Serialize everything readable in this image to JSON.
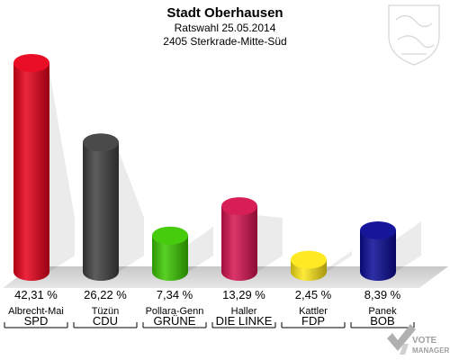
{
  "header": {
    "title": "Stadt Oberhausen",
    "subtitle": "Ratswahl 25.05.2014",
    "district": "2405 Sterkrade-Mitte-Süd"
  },
  "branding": {
    "crest_icon": "coat-of-arms-icon",
    "logo_icon": "vote-check-icon",
    "logo_line1": "VOTE",
    "logo_line2": "MANAGER"
  },
  "chart_data": {
    "type": "bar",
    "title": "Stadt Oberhausen",
    "subtitle": "Ratswahl 25.05.2014",
    "categories": [
      "SPD",
      "CDU",
      "GRÜNE",
      "DIE LINKE",
      "FDP",
      "BOB"
    ],
    "candidates": [
      "Albrecht-Mai",
      "Tüzün",
      "Pollara-Genn",
      "Haller",
      "Kattler",
      "Panek"
    ],
    "values": [
      42.31,
      26.22,
      7.34,
      13.29,
      2.45,
      8.39
    ],
    "value_labels": [
      "42,31 %",
      "26,22 %",
      "7,34 %",
      "13,29 %",
      "2,45 %",
      "8,39 %"
    ],
    "colors": [
      "#e8001a",
      "#404040",
      "#3cc800",
      "#d6124e",
      "#ffe818",
      "#0a0a96"
    ],
    "xlabel": "",
    "ylabel": "",
    "ylim": [
      0,
      42.31
    ]
  }
}
